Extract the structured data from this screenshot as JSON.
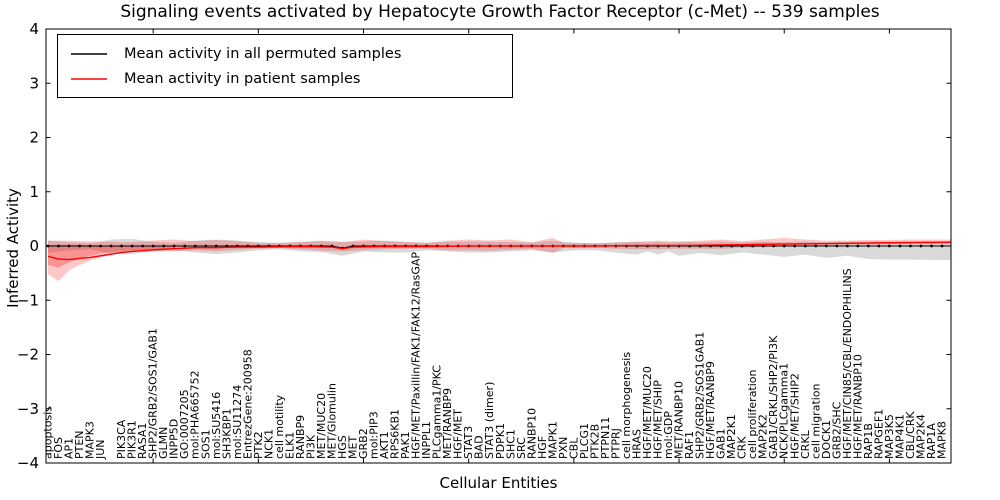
{
  "figure": {
    "title": "Signaling events activated by Hepatocyte Growth Factor Receptor (c-Met) -- 539 samples",
    "xlabel": "Cellular Entities",
    "ylabel": "Inferred Activity"
  },
  "chart_data": {
    "type": "line",
    "title": "Signaling events activated by Hepatocyte Growth Factor Receptor (c-Met) -- 539 samples",
    "xlabel": "Cellular Entities",
    "ylabel": "Inferred Activity",
    "ylim": [
      -4,
      4
    ],
    "grid": false,
    "legend_position": "upper left",
    "yticks": [
      {
        "value": 4,
        "label": "4"
      },
      {
        "value": 3,
        "label": "3"
      },
      {
        "value": 2,
        "label": "2"
      },
      {
        "value": 1,
        "label": "1"
      },
      {
        "value": 0,
        "label": "0"
      },
      {
        "value": -1,
        "label": "−1"
      },
      {
        "value": -2,
        "label": "−2"
      },
      {
        "value": -3,
        "label": "−3"
      },
      {
        "value": -4,
        "label": "−4"
      }
    ],
    "x_major_tick_interval": 10,
    "categories": [
      "apoptosis",
      "FOS",
      "AP1",
      "PTEN",
      "MAPK3",
      "JUN",
      "",
      "PIK3CA",
      "PIK3R1",
      "RASA1",
      "SHP2/GRB2/SOS1/GAB1",
      "GLMN",
      "INPP5D",
      "GO:0007205",
      "mol:PHA665752",
      "SOS1",
      "mol:SU5416",
      "SH3KBP1",
      "mol:SU11274",
      "EntrezGene:200958",
      "PTK2",
      "NCK1",
      "cell motility",
      "ELK1",
      "RANBP9",
      "PI3K",
      "MET/MUC20",
      "MET/Glomulin",
      "HGS",
      "MET",
      "GRB2",
      "mol:PIP3",
      "AKT1",
      "RPS6KB1",
      "PAK1",
      "HGF/MET/Paxillin/FAK1/FAK12/RasGAP",
      "INPPL1",
      "PLCgamma1/PKC",
      "MET/RANBP9",
      "HGF/MET",
      "STAT3",
      "BAD",
      "STAT3 (dimer)",
      "PDPK1",
      "SHC1",
      "SRC",
      "RANBP10",
      "HGF",
      "MAPK1",
      "PXN",
      "CBL",
      "PLCG1",
      "PTK2B",
      "PTPN11",
      "PTPRJ",
      "cell morphogenesis",
      "HRAS",
      "HGF/MET/MUC20",
      "HGF/MET/SHIP",
      "mol:GDP",
      "MET/RANBP10",
      "RAF1",
      "SHP2/GRB2/SOS1GAB1",
      "HGF/MET/RANBP9",
      "GAB1",
      "MAP2K1",
      "CRK",
      "cell proliferation",
      "MAP2K2",
      "GAB1/CRKL/SHP2/PI3K",
      "NCK/PLCgamma1",
      "HGF/MET/SHIP2",
      "CRKL",
      "cell migration",
      "DOCK1",
      "GRB2/SHC",
      "HGF/MET/CIN85/CBL/ENDOPHILINS",
      "HGF/MET/RANBP10",
      "RAP1B",
      "RAPGEF1",
      "MAP3K5",
      "MAP4K1",
      "CBL/CRK",
      "MAP2K4",
      "RAP1A",
      "MAPK8"
    ],
    "series": [
      {
        "name": "Mean activity in all permuted samples",
        "color": "#000000",
        "marker": "dot",
        "points": [
          [
            0,
            0
          ],
          [
            27,
            0
          ],
          [
            28,
            -0.04
          ],
          [
            29,
            0
          ],
          [
            86,
            0
          ]
        ]
      },
      {
        "name": "Mean activity in patient samples",
        "color": "#ff0000",
        "marker": "none",
        "points": [
          [
            0,
            -0.19
          ],
          [
            1,
            -0.24
          ],
          [
            2,
            -0.25
          ],
          [
            3,
            -0.23
          ],
          [
            4,
            -0.21
          ],
          [
            5,
            -0.18
          ],
          [
            6,
            -0.15
          ],
          [
            7,
            -0.12
          ],
          [
            8,
            -0.1
          ],
          [
            10,
            -0.07
          ],
          [
            12,
            -0.05
          ],
          [
            14,
            -0.03
          ],
          [
            16,
            -0.03
          ],
          [
            18,
            -0.02
          ],
          [
            20,
            -0.02
          ],
          [
            24,
            -0.01
          ],
          [
            27,
            -0.02
          ],
          [
            28,
            -0.05
          ],
          [
            29,
            -0.02
          ],
          [
            32,
            -0.01
          ],
          [
            36,
            -0.01
          ],
          [
            40,
            0
          ],
          [
            44,
            0
          ],
          [
            48,
            0
          ],
          [
            52,
            0
          ],
          [
            56,
            0.01
          ],
          [
            60,
            0.01
          ],
          [
            64,
            0.02
          ],
          [
            68,
            0.03
          ],
          [
            72,
            0.04
          ],
          [
            76,
            0.05
          ],
          [
            80,
            0.06
          ],
          [
            86,
            0.07
          ]
        ]
      }
    ],
    "bands": [
      {
        "name": "permuted samples activity range",
        "color": "rgba(128,128,128,0.30)",
        "points": [
          [
            0,
            0.1,
            -0.12
          ],
          [
            2,
            0.07,
            -0.08
          ],
          [
            4,
            0.05,
            -0.06
          ],
          [
            5,
            0.08,
            -0.1
          ],
          [
            6,
            0.12,
            -0.14
          ],
          [
            8,
            0.13,
            -0.15
          ],
          [
            10,
            0.08,
            -0.1
          ],
          [
            12,
            0.06,
            -0.08
          ],
          [
            14,
            0.1,
            -0.12
          ],
          [
            16,
            0.12,
            -0.15
          ],
          [
            18,
            0.1,
            -0.12
          ],
          [
            20,
            0.07,
            -0.08
          ],
          [
            22,
            0.06,
            -0.06
          ],
          [
            24,
            0.08,
            -0.1
          ],
          [
            26,
            0.09,
            -0.11
          ],
          [
            28,
            0.08,
            -0.18
          ],
          [
            30,
            0.08,
            -0.1
          ],
          [
            32,
            0.1,
            -0.12
          ],
          [
            34,
            0.08,
            -0.12
          ],
          [
            36,
            0.06,
            -0.08
          ],
          [
            38,
            0.08,
            -0.1
          ],
          [
            40,
            0.08,
            -0.12
          ],
          [
            42,
            0.08,
            -0.12
          ],
          [
            44,
            0.07,
            -0.1
          ],
          [
            46,
            0.06,
            -0.08
          ],
          [
            48,
            0.1,
            -0.12
          ],
          [
            50,
            0.06,
            -0.08
          ],
          [
            52,
            0.05,
            -0.08
          ],
          [
            54,
            0.07,
            -0.12
          ],
          [
            56,
            0.08,
            -0.16
          ],
          [
            57,
            0.06,
            -0.1
          ],
          [
            58,
            0.08,
            -0.16
          ],
          [
            59,
            0.06,
            -0.1
          ],
          [
            60,
            0.08,
            -0.18
          ],
          [
            62,
            0.07,
            -0.13
          ],
          [
            64,
            0.08,
            -0.17
          ],
          [
            66,
            0.07,
            -0.12
          ],
          [
            68,
            0.08,
            -0.16
          ],
          [
            70,
            0.07,
            -0.2
          ],
          [
            72,
            0.08,
            -0.16
          ],
          [
            74,
            0.07,
            -0.22
          ],
          [
            76,
            0.08,
            -0.18
          ],
          [
            78,
            0.08,
            -0.24
          ],
          [
            80,
            0.08,
            -0.25
          ],
          [
            82,
            0.08,
            -0.25
          ],
          [
            86,
            0.09,
            -0.26
          ]
        ]
      },
      {
        "name": "patient samples activity range",
        "color": "rgba(255,35,35,0.25)",
        "points": [
          [
            0,
            0.1,
            -0.52
          ],
          [
            1,
            0.1,
            -0.65
          ],
          [
            2,
            0.1,
            -0.45
          ],
          [
            3,
            0.09,
            -0.35
          ],
          [
            4,
            0.09,
            -0.27
          ],
          [
            5,
            0.08,
            -0.21
          ],
          [
            6,
            0.08,
            -0.16
          ],
          [
            7,
            0.07,
            -0.13
          ],
          [
            8,
            0.07,
            -0.11
          ],
          [
            10,
            0.1,
            -0.1
          ],
          [
            12,
            0.12,
            -0.1
          ],
          [
            14,
            0.09,
            -0.08
          ],
          [
            16,
            0.11,
            -0.1
          ],
          [
            18,
            0.09,
            -0.07
          ],
          [
            20,
            0.06,
            -0.05
          ],
          [
            22,
            0.05,
            -0.04
          ],
          [
            24,
            0.07,
            -0.06
          ],
          [
            26,
            0.1,
            -0.09
          ],
          [
            28,
            0.07,
            -0.1
          ],
          [
            30,
            0.12,
            -0.08
          ],
          [
            32,
            0.09,
            -0.06
          ],
          [
            34,
            0.07,
            -0.05
          ],
          [
            36,
            0.06,
            -0.05
          ],
          [
            38,
            0.1,
            -0.08
          ],
          [
            40,
            0.12,
            -0.08
          ],
          [
            42,
            0.1,
            -0.09
          ],
          [
            44,
            0.12,
            -0.07
          ],
          [
            46,
            0.07,
            -0.05
          ],
          [
            48,
            0.15,
            -0.13
          ],
          [
            49,
            0.06,
            -0.04
          ],
          [
            52,
            0.05,
            -0.04
          ],
          [
            54,
            0.06,
            -0.05
          ],
          [
            56,
            0.08,
            -0.06
          ],
          [
            58,
            0.1,
            -0.06
          ],
          [
            60,
            0.08,
            -0.05
          ],
          [
            62,
            0.1,
            -0.05
          ],
          [
            64,
            0.12,
            -0.05
          ],
          [
            66,
            0.09,
            -0.03
          ],
          [
            68,
            0.12,
            -0.02
          ],
          [
            70,
            0.15,
            -0.01
          ],
          [
            72,
            0.12,
            0.0
          ],
          [
            74,
            0.1,
            0.01
          ],
          [
            76,
            0.1,
            0.02
          ],
          [
            78,
            0.11,
            0.02
          ],
          [
            80,
            0.11,
            0.03
          ],
          [
            82,
            0.12,
            0.03
          ],
          [
            86,
            0.12,
            0.03
          ]
        ]
      },
      {
        "name": "patient samples activity range (inner)",
        "color": "rgba(235,30,30,0.30)",
        "points": [
          [
            0,
            0.02,
            -0.35
          ],
          [
            1,
            0.02,
            -0.4
          ],
          [
            2,
            0.02,
            -0.3
          ],
          [
            3,
            0.02,
            -0.24
          ],
          [
            4,
            0.02,
            -0.18
          ],
          [
            5,
            0.01,
            -0.14
          ],
          [
            6,
            0.01,
            -0.11
          ],
          [
            8,
            0.01,
            -0.08
          ],
          [
            10,
            0.01,
            -0.06
          ],
          [
            12,
            0.01,
            -0.05
          ]
        ]
      }
    ]
  }
}
